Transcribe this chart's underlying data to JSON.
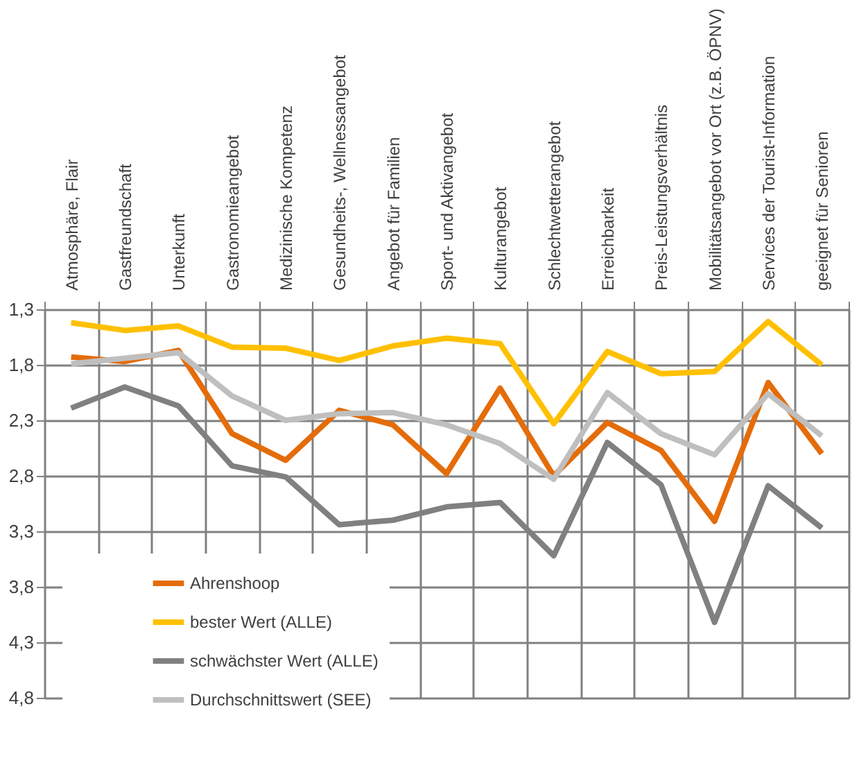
{
  "chart_data": {
    "type": "line",
    "categories": [
      "Atmosphäre, Flair",
      "Gastfreundschaft",
      "Unterkunft",
      "Gastronomieangebot",
      "Medizinische Kompetenz",
      "Gesundheits-, Wellnessangebot",
      "Angebot für Familien",
      "Sport- und Aktivangebot",
      "Kulturangebot",
      "Schlechtwetterangebot",
      "Erreichbarkeit",
      "Preis-Leistungsverhältnis",
      "Mobilitätsangebot vor Ort (z.B. ÖPNV)",
      "Services der Tourist-Information",
      "geeignet für Senioren"
    ],
    "series": [
      {
        "name": "Ahrenshoop",
        "color": "#e46c0a",
        "values": [
          1.73,
          1.77,
          1.67,
          2.42,
          2.66,
          2.21,
          2.34,
          2.78,
          2.01,
          2.8,
          2.32,
          2.57,
          3.21,
          1.96,
          2.6
        ]
      },
      {
        "name": "bester Wert (ALLE)",
        "color": "#ffc000",
        "values": [
          1.42,
          1.49,
          1.45,
          1.64,
          1.65,
          1.76,
          1.63,
          1.56,
          1.61,
          2.33,
          1.68,
          1.88,
          1.86,
          1.41,
          1.8
        ]
      },
      {
        "name": "schwächster Wert (ALLE)",
        "color": "#808080",
        "values": [
          2.19,
          2.0,
          2.17,
          2.71,
          2.81,
          3.24,
          3.2,
          3.08,
          3.04,
          3.52,
          2.5,
          2.88,
          4.12,
          2.89,
          3.27
        ]
      },
      {
        "name": "Durchschnittswert (SEE)",
        "color": "#bfbfbf",
        "values": [
          1.79,
          1.74,
          1.69,
          2.08,
          2.3,
          2.24,
          2.23,
          2.34,
          2.51,
          2.83,
          2.05,
          2.42,
          2.61,
          2.06,
          2.44
        ]
      }
    ],
    "ylim": [
      4.8,
      1.3
    ],
    "yticks": [
      {
        "value": 1.3,
        "label": "1,3"
      },
      {
        "value": 1.8,
        "label": "1,8"
      },
      {
        "value": 2.3,
        "label": "2,3"
      },
      {
        "value": 2.8,
        "label": "2,8"
      },
      {
        "value": 3.3,
        "label": "3,3"
      },
      {
        "value": 3.8,
        "label": "3,8"
      },
      {
        "value": 4.3,
        "label": "4,3"
      },
      {
        "value": 4.8,
        "label": "4,8"
      }
    ],
    "grid": true,
    "legend": "bottom left",
    "line_style": "solid",
    "marker": "none"
  }
}
